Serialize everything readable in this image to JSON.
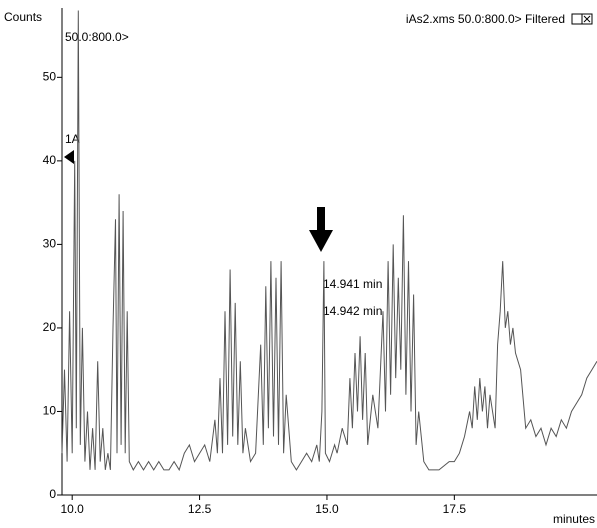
{
  "chart_data": {
    "type": "line",
    "title": "iAs2.xms 50.0:800.0> Filtered",
    "y_label": "Counts",
    "x_label": "minutes",
    "trace_label": "50.0:800.0>",
    "annotations": [
      "1A",
      "14.941 min",
      "14.942 min"
    ],
    "color": "#555555",
    "xlim": [
      9.8,
      20.3
    ],
    "ylim": [
      0,
      58.3
    ],
    "xticks": [
      {
        "value": 10,
        "label": "10.0"
      },
      12.5,
      {
        "value": 15,
        "label": "15.0"
      },
      17.5
    ],
    "yticks": [
      0,
      10,
      20,
      30,
      40,
      50
    ],
    "x": [
      9.8,
      9.85,
      9.9,
      9.95,
      10.0,
      10.05,
      10.08,
      10.12,
      10.16,
      10.2,
      10.25,
      10.3,
      10.35,
      10.4,
      10.45,
      10.5,
      10.55,
      10.6,
      10.65,
      10.7,
      10.75,
      10.8,
      10.85,
      10.88,
      10.92,
      10.96,
      11.0,
      11.04,
      11.08,
      11.12,
      11.2,
      11.3,
      11.4,
      11.5,
      11.6,
      11.7,
      11.8,
      11.9,
      12.0,
      12.1,
      12.2,
      12.3,
      12.4,
      12.5,
      12.6,
      12.7,
      12.8,
      12.85,
      12.9,
      12.95,
      13.0,
      13.05,
      13.1,
      13.15,
      13.2,
      13.25,
      13.3,
      13.35,
      13.4,
      13.5,
      13.6,
      13.7,
      13.75,
      13.8,
      13.85,
      13.9,
      13.95,
      14.0,
      14.05,
      14.1,
      14.15,
      14.2,
      14.3,
      14.4,
      14.5,
      14.6,
      14.7,
      14.8,
      14.85,
      14.9,
      14.94,
      14.97,
      15.05,
      15.15,
      15.2,
      15.3,
      15.4,
      15.45,
      15.5,
      15.55,
      15.6,
      15.65,
      15.7,
      15.75,
      15.8,
      15.9,
      16.0,
      16.1,
      16.15,
      16.2,
      16.25,
      16.3,
      16.35,
      16.4,
      16.45,
      16.5,
      16.55,
      16.6,
      16.65,
      16.7,
      16.75,
      16.8,
      16.9,
      17.0,
      17.2,
      17.4,
      17.5,
      17.6,
      17.7,
      17.8,
      17.85,
      17.9,
      17.95,
      18.0,
      18.05,
      18.1,
      18.15,
      18.2,
      18.3,
      18.35,
      18.4,
      18.45,
      18.5,
      18.55,
      18.6,
      18.65,
      18.7,
      18.8,
      18.9,
      19.0,
      19.1,
      19.2,
      19.3,
      19.4,
      19.5,
      19.6,
      19.7,
      19.8,
      19.9,
      20.0,
      20.1,
      20.2,
      20.3
    ],
    "values": [
      5,
      15,
      4,
      22,
      5,
      40,
      8,
      58,
      6,
      20,
      4,
      10,
      3,
      8,
      3,
      16,
      4,
      8,
      3,
      5,
      3,
      20,
      33,
      5,
      36,
      6,
      34,
      5,
      22,
      4,
      3,
      4,
      3,
      4,
      3,
      4,
      3,
      3,
      4,
      3,
      5,
      6,
      4,
      5,
      6,
      4,
      9,
      5,
      14,
      5,
      22,
      6,
      27,
      7,
      23,
      6,
      16,
      5,
      8,
      4,
      5,
      18,
      6,
      25,
      8,
      28,
      7,
      26,
      6,
      28,
      5,
      12,
      4,
      3,
      4,
      5,
      4,
      6,
      4,
      10,
      28,
      5,
      4,
      6,
      5,
      8,
      6,
      14,
      8,
      17,
      10,
      19,
      9,
      17,
      6,
      12,
      8,
      22,
      10,
      28,
      12,
      30,
      14,
      26,
      15,
      33.5,
      12,
      28,
      10,
      24,
      6,
      10,
      4,
      3,
      3,
      4,
      4,
      5,
      7,
      10,
      8,
      13,
      9,
      14,
      10,
      13,
      8,
      12,
      8,
      18,
      22,
      28,
      20,
      22,
      18,
      20,
      17,
      15,
      8,
      9,
      7,
      8,
      6,
      8,
      7,
      9,
      8,
      10,
      11,
      12,
      14,
      15,
      16
    ]
  }
}
